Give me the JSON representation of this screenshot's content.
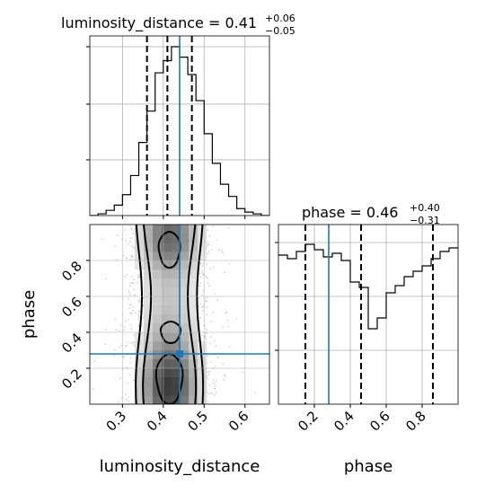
{
  "chart_data": [
    {
      "type": "histogram",
      "panel": "top-left",
      "title_param": "luminosity_distance",
      "title_value": "0.41",
      "title_plus": "+0.06",
      "title_minus": "−0.05",
      "x_range": [
        0.22,
        0.66
      ],
      "bin_edges": [
        0.22,
        0.24,
        0.26,
        0.28,
        0.3,
        0.32,
        0.34,
        0.36,
        0.38,
        0.4,
        0.42,
        0.44,
        0.46,
        0.48,
        0.5,
        0.52,
        0.54,
        0.56,
        0.58,
        0.6,
        0.62,
        0.64,
        0.66
      ],
      "density": [
        0.0,
        0.01,
        0.03,
        0.06,
        0.12,
        0.23,
        0.42,
        0.6,
        0.82,
        0.89,
        0.97,
        0.91,
        0.81,
        0.66,
        0.47,
        0.3,
        0.18,
        0.11,
        0.04,
        0.02,
        0.01,
        0.0
      ],
      "quantile_lines": [
        0.36,
        0.41,
        0.47
      ],
      "truth": 0.44,
      "grid": true
    },
    {
      "type": "histogram",
      "panel": "bottom-right",
      "title_param": "phase",
      "title_value": "0.46",
      "title_plus": "+0.40",
      "title_minus": "−0.31",
      "x_range": [
        0.0,
        1.0
      ],
      "x_ticks": [
        0.2,
        0.4,
        0.6,
        0.8
      ],
      "x_tick_labels": [
        "0.2",
        "0.4",
        "0.6",
        "0.8"
      ],
      "x_label": "phase",
      "bin_edges": [
        0.0,
        0.05,
        0.1,
        0.15,
        0.2,
        0.25,
        0.3,
        0.35,
        0.4,
        0.45,
        0.5,
        0.55,
        0.6,
        0.65,
        0.7,
        0.75,
        0.8,
        0.85,
        0.9,
        0.95,
        1.0
      ],
      "density": [
        0.83,
        0.81,
        0.85,
        0.89,
        0.86,
        0.82,
        0.84,
        0.8,
        0.68,
        0.65,
        0.42,
        0.48,
        0.62,
        0.66,
        0.71,
        0.74,
        0.77,
        0.81,
        0.85,
        0.87
      ],
      "quantile_lines": [
        0.15,
        0.46,
        0.86
      ],
      "truth": 0.28,
      "grid": true
    },
    {
      "type": "2d-histogram-contour",
      "panel": "bottom-left",
      "x_range": [
        0.22,
        0.66
      ],
      "y_range": [
        0.0,
        1.0
      ],
      "x_ticks": [
        0.3,
        0.4,
        0.5,
        0.6
      ],
      "x_tick_labels": [
        "0.3",
        "0.4",
        "0.5",
        "0.6"
      ],
      "y_ticks": [
        0.2,
        0.4,
        0.6,
        0.8
      ],
      "y_tick_labels": [
        "0.2",
        "0.4",
        "0.6",
        "0.8"
      ],
      "x_label": "luminosity_distance",
      "y_label": "phase",
      "truth": [
        0.44,
        0.28
      ],
      "grid": true
    }
  ]
}
